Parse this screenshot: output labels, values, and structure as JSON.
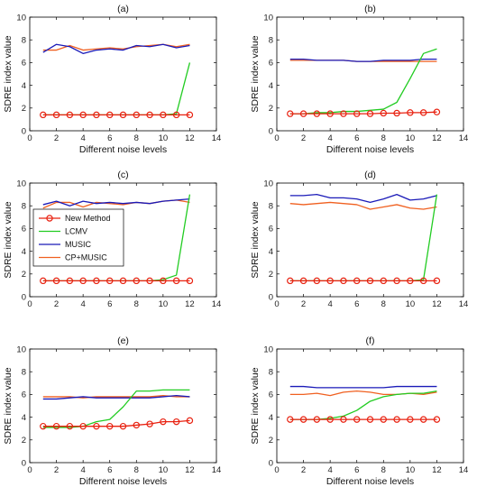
{
  "colors": {
    "new_method": "#e8200f",
    "lcmv": "#22cc22",
    "music": "#1a1ab8",
    "cp_music": "#f06020",
    "axis": "#000000"
  },
  "legend": {
    "panel_index": 2,
    "entries": [
      "New Method",
      "LCMV",
      "MUSIC",
      "CP+MUSIC"
    ]
  },
  "chart_data": [
    {
      "type": "line",
      "title": "(a)",
      "xlabel": "Different noise levels",
      "ylabel": "SDRE index value",
      "xlim": [
        0,
        14
      ],
      "ylim": [
        0,
        10
      ],
      "xticks": [
        "0",
        "2",
        "4",
        "6",
        "8",
        "10",
        "12",
        "14"
      ],
      "yticks": [
        "0",
        "2",
        "4",
        "6",
        "8",
        "10"
      ],
      "x": [
        1,
        2,
        3,
        4,
        5,
        6,
        7,
        8,
        9,
        10,
        11,
        12
      ],
      "series": [
        {
          "name": "New Method",
          "values": [
            1.4,
            1.4,
            1.4,
            1.4,
            1.4,
            1.4,
            1.4,
            1.4,
            1.4,
            1.4,
            1.4,
            1.4
          ]
        },
        {
          "name": "LCMV",
          "values": [
            1.4,
            1.4,
            1.4,
            1.4,
            1.4,
            1.4,
            1.4,
            1.4,
            1.4,
            1.4,
            1.5,
            6.0
          ]
        },
        {
          "name": "MUSIC",
          "values": [
            6.9,
            7.6,
            7.4,
            6.8,
            7.1,
            7.2,
            7.1,
            7.5,
            7.4,
            7.6,
            7.3,
            7.5
          ]
        },
        {
          "name": "CP+MUSIC",
          "values": [
            7.1,
            7.1,
            7.5,
            7.1,
            7.2,
            7.3,
            7.2,
            7.4,
            7.5,
            7.6,
            7.4,
            7.6
          ]
        }
      ]
    },
    {
      "type": "line",
      "title": "(b)",
      "xlabel": "Different noise levels",
      "ylabel": "SDRE index value",
      "xlim": [
        0,
        14
      ],
      "ylim": [
        0,
        10
      ],
      "xticks": [
        "0",
        "2",
        "4",
        "6",
        "8",
        "10",
        "12",
        "14"
      ],
      "yticks": [
        "0",
        "2",
        "4",
        "6",
        "8",
        "10"
      ],
      "x": [
        1,
        2,
        3,
        4,
        5,
        6,
        7,
        8,
        9,
        10,
        11,
        12
      ],
      "series": [
        {
          "name": "New Method",
          "values": [
            1.5,
            1.5,
            1.5,
            1.5,
            1.5,
            1.5,
            1.5,
            1.55,
            1.55,
            1.6,
            1.6,
            1.65
          ]
        },
        {
          "name": "LCMV",
          "values": [
            1.5,
            1.5,
            1.6,
            1.6,
            1.7,
            1.7,
            1.8,
            1.9,
            2.5,
            4.6,
            6.8,
            7.2
          ]
        },
        {
          "name": "MUSIC",
          "values": [
            6.3,
            6.3,
            6.2,
            6.2,
            6.2,
            6.1,
            6.1,
            6.2,
            6.2,
            6.2,
            6.3,
            6.3
          ]
        },
        {
          "name": "CP+MUSIC",
          "values": [
            6.2,
            6.2,
            6.2,
            6.2,
            6.2,
            6.1,
            6.1,
            6.1,
            6.1,
            6.1,
            6.1,
            6.1
          ]
        }
      ]
    },
    {
      "type": "line",
      "title": "(c)",
      "xlabel": "",
      "ylabel": "SDRE index value",
      "xlim": [
        0,
        14
      ],
      "ylim": [
        0,
        10
      ],
      "xticks": [
        "0",
        "2",
        "4",
        "6",
        "8",
        "10",
        "12",
        "14"
      ],
      "yticks": [
        "0",
        "2",
        "4",
        "6",
        "8",
        "10"
      ],
      "x": [
        1,
        2,
        3,
        4,
        5,
        6,
        7,
        8,
        9,
        10,
        11,
        12
      ],
      "series": [
        {
          "name": "New Method",
          "values": [
            1.4,
            1.4,
            1.4,
            1.4,
            1.4,
            1.4,
            1.4,
            1.4,
            1.4,
            1.4,
            1.4,
            1.4
          ]
        },
        {
          "name": "LCMV",
          "values": [
            1.4,
            1.4,
            1.4,
            1.4,
            1.4,
            1.4,
            1.4,
            1.4,
            1.4,
            1.5,
            1.9,
            9.0
          ]
        },
        {
          "name": "MUSIC",
          "values": [
            8.1,
            8.4,
            8.0,
            8.4,
            8.2,
            8.3,
            8.2,
            8.3,
            8.2,
            8.4,
            8.5,
            8.6
          ]
        },
        {
          "name": "CP+MUSIC",
          "values": [
            7.8,
            8.3,
            8.3,
            7.9,
            8.3,
            8.2,
            8.1,
            8.3,
            8.2,
            8.4,
            8.5,
            8.3
          ]
        }
      ]
    },
    {
      "type": "line",
      "title": "(d)",
      "xlabel": "",
      "ylabel": "SDRE index value",
      "xlim": [
        0,
        14
      ],
      "ylim": [
        0,
        10
      ],
      "xticks": [
        "0",
        "2",
        "4",
        "6",
        "8",
        "10",
        "12",
        "14"
      ],
      "yticks": [
        "0",
        "2",
        "4",
        "6",
        "8",
        "10"
      ],
      "x": [
        1,
        2,
        3,
        4,
        5,
        6,
        7,
        8,
        9,
        10,
        11,
        12
      ],
      "series": [
        {
          "name": "New Method",
          "values": [
            1.4,
            1.4,
            1.4,
            1.4,
            1.4,
            1.4,
            1.4,
            1.4,
            1.4,
            1.4,
            1.4,
            1.4
          ]
        },
        {
          "name": "LCMV",
          "values": [
            1.4,
            1.4,
            1.4,
            1.4,
            1.4,
            1.4,
            1.4,
            1.4,
            1.4,
            1.4,
            1.5,
            9.0
          ]
        },
        {
          "name": "MUSIC",
          "values": [
            8.9,
            8.9,
            9.0,
            8.7,
            8.7,
            8.6,
            8.3,
            8.6,
            9.0,
            8.5,
            8.6,
            8.9
          ]
        },
        {
          "name": "CP+MUSIC",
          "values": [
            8.2,
            8.1,
            8.2,
            8.3,
            8.2,
            8.1,
            7.7,
            7.9,
            8.1,
            7.8,
            7.7,
            7.9
          ]
        }
      ]
    },
    {
      "type": "line",
      "title": "(e)",
      "xlabel": "Different noise levels",
      "ylabel": "SDRE index value",
      "xlim": [
        0,
        14
      ],
      "ylim": [
        0,
        10
      ],
      "xticks": [
        "0",
        "2",
        "4",
        "6",
        "8",
        "10",
        "12",
        "14"
      ],
      "yticks": [
        "0",
        "2",
        "4",
        "6",
        "8",
        "10"
      ],
      "x": [
        1,
        2,
        3,
        4,
        5,
        6,
        7,
        8,
        9,
        10,
        11,
        12
      ],
      "series": [
        {
          "name": "New Method",
          "values": [
            3.2,
            3.2,
            3.2,
            3.2,
            3.2,
            3.2,
            3.2,
            3.3,
            3.4,
            3.6,
            3.6,
            3.7
          ]
        },
        {
          "name": "LCMV",
          "values": [
            3.1,
            3.1,
            3.1,
            3.2,
            3.6,
            3.8,
            4.9,
            6.3,
            6.3,
            6.4,
            6.4,
            6.4
          ]
        },
        {
          "name": "MUSIC",
          "values": [
            5.6,
            5.6,
            5.7,
            5.8,
            5.7,
            5.7,
            5.7,
            5.7,
            5.7,
            5.8,
            5.9,
            5.8
          ]
        },
        {
          "name": "CP+MUSIC",
          "values": [
            5.8,
            5.8,
            5.8,
            5.7,
            5.8,
            5.8,
            5.8,
            5.8,
            5.8,
            5.9,
            5.8,
            5.8
          ]
        }
      ]
    },
    {
      "type": "line",
      "title": "(f)",
      "xlabel": "Different noise levels",
      "ylabel": "SDRE index value",
      "xlim": [
        0,
        14
      ],
      "ylim": [
        0,
        10
      ],
      "xticks": [
        "0",
        "2",
        "4",
        "6",
        "8",
        "10",
        "12",
        "14"
      ],
      "yticks": [
        "0",
        "2",
        "4",
        "6",
        "8",
        "10"
      ],
      "x": [
        1,
        2,
        3,
        4,
        5,
        6,
        7,
        8,
        9,
        10,
        11,
        12
      ],
      "series": [
        {
          "name": "New Method",
          "values": [
            3.8,
            3.8,
            3.8,
            3.8,
            3.8,
            3.8,
            3.8,
            3.8,
            3.8,
            3.8,
            3.8,
            3.8
          ]
        },
        {
          "name": "LCMV",
          "values": [
            3.8,
            3.8,
            3.8,
            3.9,
            4.1,
            4.6,
            5.4,
            5.8,
            6.0,
            6.1,
            6.1,
            6.3
          ]
        },
        {
          "name": "MUSIC",
          "values": [
            6.7,
            6.7,
            6.6,
            6.6,
            6.6,
            6.6,
            6.6,
            6.6,
            6.7,
            6.7,
            6.7,
            6.7
          ]
        },
        {
          "name": "CP+MUSIC",
          "values": [
            6.0,
            6.0,
            6.1,
            5.9,
            6.2,
            6.3,
            6.2,
            6.0,
            6.0,
            6.1,
            6.0,
            6.2
          ]
        }
      ]
    }
  ]
}
